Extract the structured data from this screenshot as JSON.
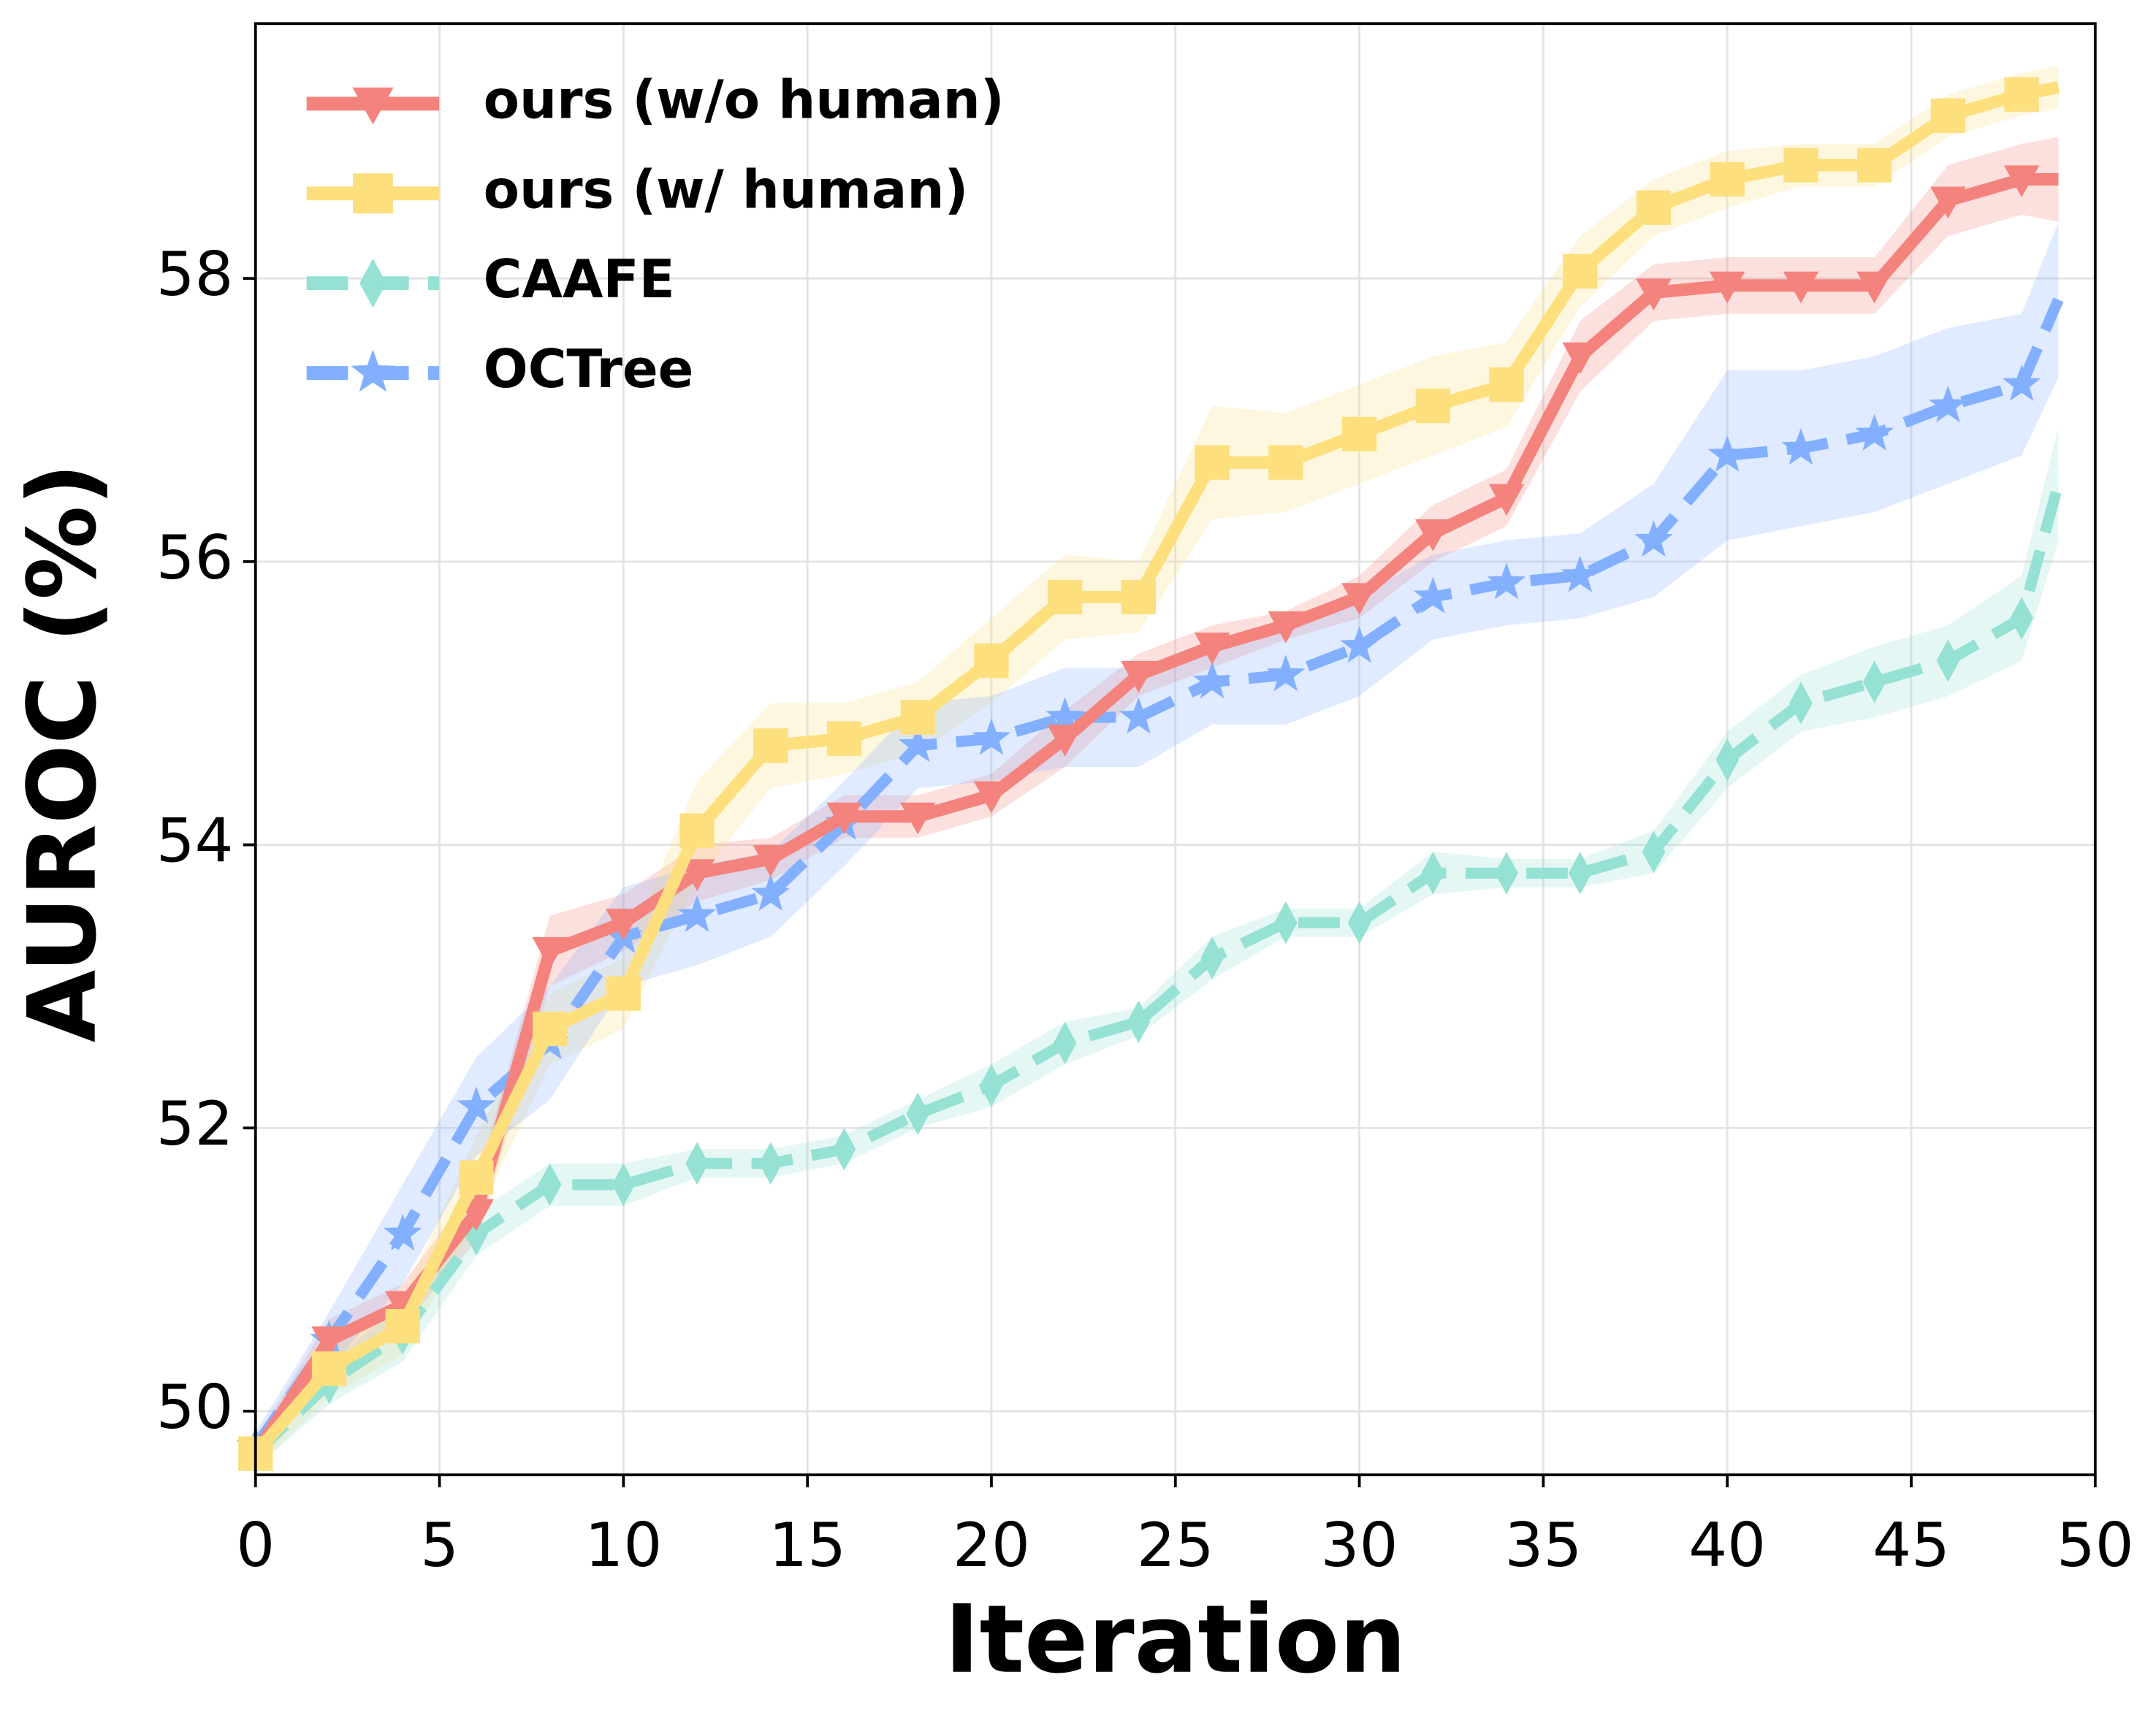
{
  "chart_data": {
    "type": "line",
    "xlabel": "Iteration",
    "ylabel": "AUROC (%)",
    "x": [
      0,
      2,
      4,
      6,
      8,
      10,
      12,
      14,
      16,
      18,
      20,
      22,
      24,
      26,
      28,
      30,
      32,
      34,
      36,
      38,
      40,
      42,
      44,
      46,
      48,
      49
    ],
    "series": [
      {
        "name": "ours (w/o human)",
        "color": "#f4837d",
        "marker": "triangle-down",
        "dash": false,
        "values": [
          49.7,
          50.5,
          50.75,
          51.4,
          53.25,
          53.45,
          53.8,
          53.9,
          54.2,
          54.2,
          54.35,
          54.75,
          55.2,
          55.4,
          55.55,
          55.75,
          56.2,
          56.45,
          57.45,
          57.9,
          57.95,
          57.95,
          57.95,
          58.55,
          58.7,
          58.7
        ],
        "err": [
          0.1,
          0.15,
          0.15,
          0.2,
          0.25,
          0.2,
          0.2,
          0.15,
          0.15,
          0.15,
          0.15,
          0.2,
          0.15,
          0.15,
          0.1,
          0.15,
          0.2,
          0.2,
          0.25,
          0.2,
          0.2,
          0.2,
          0.2,
          0.25,
          0.25,
          0.3
        ]
      },
      {
        "name": "ours (w/ human)",
        "color": "#fddf7e",
        "marker": "square",
        "dash": false,
        "values": [
          49.7,
          50.3,
          50.6,
          51.65,
          52.7,
          52.95,
          54.1,
          54.7,
          54.75,
          54.9,
          55.3,
          55.75,
          55.75,
          56.7,
          56.7,
          56.9,
          57.1,
          57.25,
          58.05,
          58.5,
          58.7,
          58.8,
          58.8,
          59.15,
          59.3,
          59.35
        ],
        "err": [
          0.1,
          0.2,
          0.2,
          0.3,
          0.25,
          0.25,
          0.35,
          0.3,
          0.25,
          0.25,
          0.3,
          0.3,
          0.25,
          0.4,
          0.35,
          0.35,
          0.35,
          0.3,
          0.25,
          0.2,
          0.2,
          0.15,
          0.15,
          0.15,
          0.15,
          0.15
        ]
      },
      {
        "name": "CAAFE",
        "color": "#95e1d3",
        "marker": "diamond",
        "dash": true,
        "values": [
          49.7,
          50.2,
          50.55,
          51.25,
          51.6,
          51.6,
          51.75,
          51.75,
          51.85,
          52.1,
          52.3,
          52.6,
          52.75,
          53.2,
          53.45,
          53.45,
          53.8,
          53.8,
          53.8,
          53.95,
          54.6,
          55.0,
          55.15,
          55.3,
          55.6,
          56.55
        ],
        "err": [
          0.1,
          0.15,
          0.2,
          0.15,
          0.15,
          0.15,
          0.1,
          0.1,
          0.1,
          0.1,
          0.15,
          0.15,
          0.1,
          0.15,
          0.1,
          0.1,
          0.15,
          0.1,
          0.1,
          0.15,
          0.2,
          0.2,
          0.25,
          0.25,
          0.3,
          0.4
        ]
      },
      {
        "name": "OCTree",
        "color": "#82b0ff",
        "marker": "star",
        "dash": true,
        "values": [
          49.75,
          50.5,
          51.25,
          52.15,
          52.6,
          53.35,
          53.5,
          53.65,
          54.15,
          54.7,
          54.75,
          54.9,
          54.9,
          55.15,
          55.2,
          55.4,
          55.75,
          55.85,
          55.9,
          56.15,
          56.75,
          56.8,
          56.9,
          57.1,
          57.25,
          57.85
        ],
        "err": [
          0.1,
          0.2,
          0.35,
          0.35,
          0.4,
          0.35,
          0.35,
          0.3,
          0.3,
          0.3,
          0.3,
          0.35,
          0.35,
          0.3,
          0.35,
          0.35,
          0.3,
          0.3,
          0.3,
          0.4,
          0.6,
          0.55,
          0.55,
          0.55,
          0.5,
          0.55
        ]
      }
    ],
    "xlim": [
      0,
      50
    ],
    "ylim": [
      49.55,
      59.8
    ],
    "xticks": [
      0,
      5,
      10,
      15,
      20,
      25,
      30,
      35,
      40,
      45,
      50
    ],
    "yticks": [
      50,
      52,
      54,
      56,
      58
    ],
    "grid": true,
    "legend": "upper-left"
  }
}
